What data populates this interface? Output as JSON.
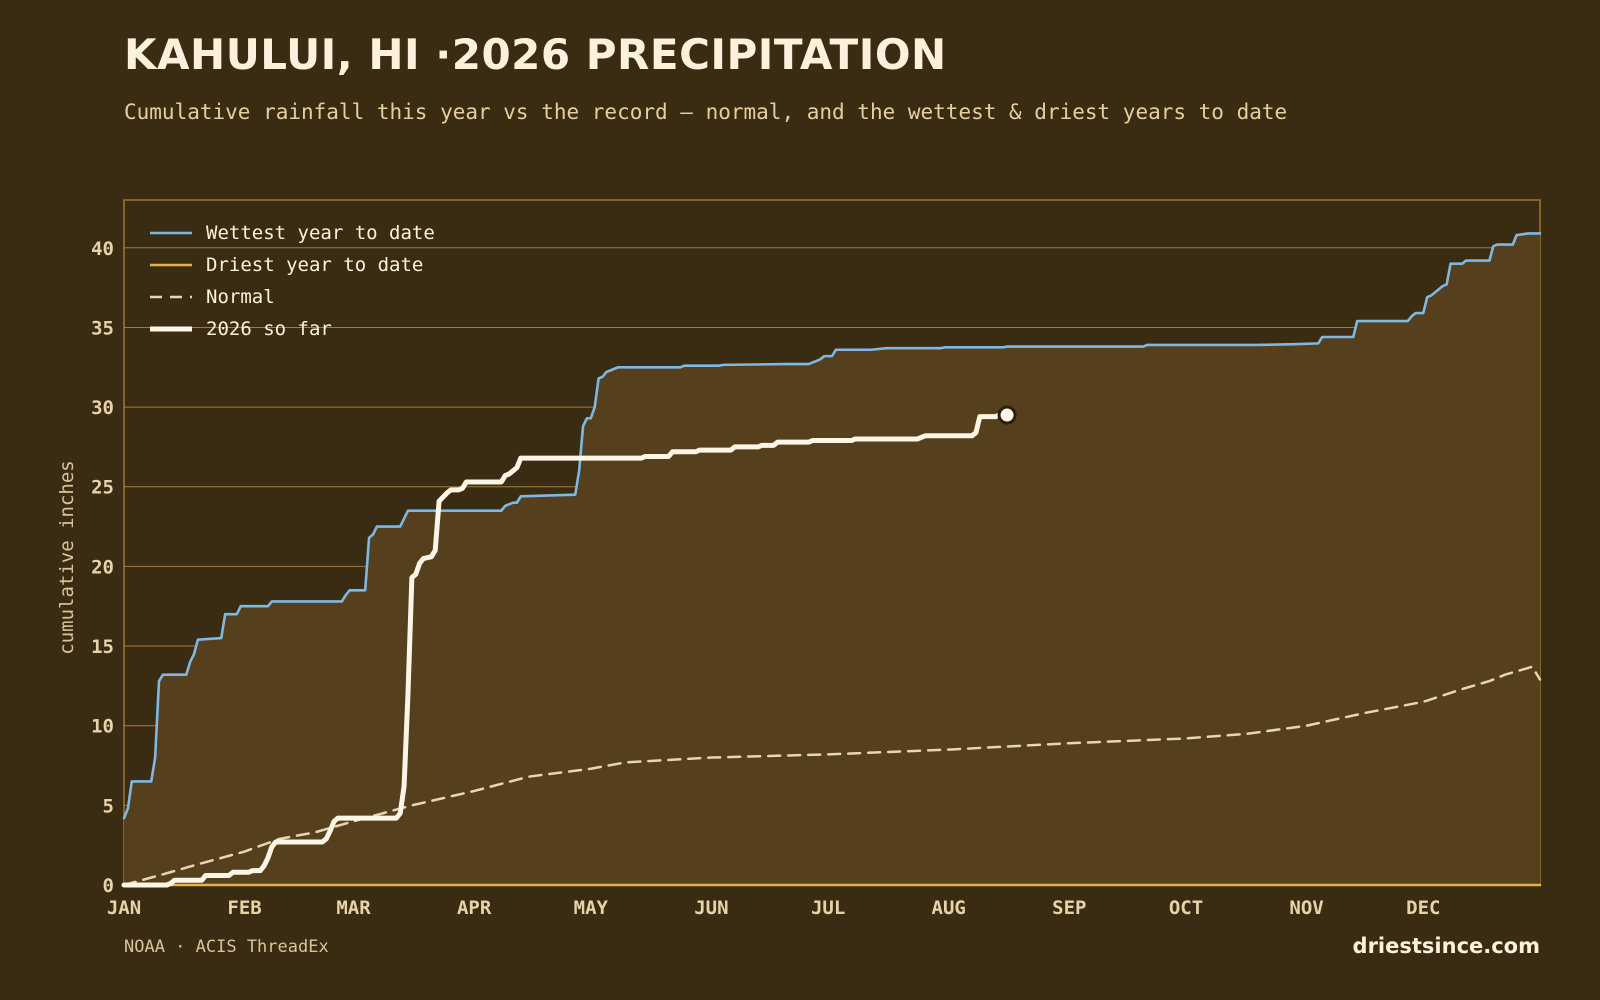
{
  "header": {
    "title": "KAHULUI, HI ·2026 PRECIPITATION",
    "subtitle": "Cumulative rainfall this year vs the record — normal, and the wettest & driest years to date"
  },
  "footer": {
    "source": "NOAA · ACIS ThreadEx",
    "brand": "driestsince.com"
  },
  "colors": {
    "background": "#3a2c13",
    "plot_fill": "#553f1d",
    "grid": "#b8893a",
    "wettest": "#7fb8e0",
    "driest": "#e3b24a",
    "normal": "#e8d6b0",
    "current": "#fdf6e6"
  },
  "chart_data": {
    "type": "line",
    "title": "KAHULUI, HI ·2026 PRECIPITATION",
    "subtitle": "Cumulative rainfall this year vs the record — normal, and the wettest & driest years to date",
    "xlabel": "",
    "ylabel": "cumulative inches",
    "x_unit": "day of year",
    "xlim": [
      1,
      365
    ],
    "ylim": [
      0,
      43
    ],
    "x_ticks": [
      {
        "label": "JAN",
        "day": 1
      },
      {
        "label": "FEB",
        "day": 32
      },
      {
        "label": "MAR",
        "day": 60
      },
      {
        "label": "APR",
        "day": 91
      },
      {
        "label": "MAY",
        "day": 121
      },
      {
        "label": "JUN",
        "day": 152
      },
      {
        "label": "JUL",
        "day": 182
      },
      {
        "label": "AUG",
        "day": 213
      },
      {
        "label": "SEP",
        "day": 244
      },
      {
        "label": "OCT",
        "day": 274
      },
      {
        "label": "NOV",
        "day": 305
      },
      {
        "label": "DEC",
        "day": 335
      }
    ],
    "y_ticks": [
      0,
      5,
      10,
      15,
      20,
      25,
      30,
      35,
      40
    ],
    "grid": true,
    "legend_position": "top-left",
    "series": [
      {
        "name": "Wettest year to date",
        "style": "solid",
        "color": "#7fb8e0",
        "points": [
          [
            1,
            4.2
          ],
          [
            2,
            4.8
          ],
          [
            3,
            6.5
          ],
          [
            8,
            6.5
          ],
          [
            9,
            8
          ],
          [
            10,
            12.8
          ],
          [
            11,
            13.2
          ],
          [
            17,
            13.2
          ],
          [
            18,
            14
          ],
          [
            19,
            14.5
          ],
          [
            20,
            15.4
          ],
          [
            26,
            15.5
          ],
          [
            27,
            17
          ],
          [
            30,
            17
          ],
          [
            31,
            17.5
          ],
          [
            38,
            17.5
          ],
          [
            39,
            17.8
          ],
          [
            57,
            17.8
          ],
          [
            58,
            18.2
          ],
          [
            59,
            18.5
          ],
          [
            63,
            18.5
          ],
          [
            64,
            21.8
          ],
          [
            65,
            22
          ],
          [
            66,
            22.5
          ],
          [
            72,
            22.5
          ],
          [
            73,
            23
          ],
          [
            74,
            23.5
          ],
          [
            98,
            23.5
          ],
          [
            99,
            23.8
          ],
          [
            101,
            24
          ],
          [
            102,
            24
          ],
          [
            103,
            24.4
          ],
          [
            117,
            24.5
          ],
          [
            118,
            26
          ],
          [
            119,
            28.8
          ],
          [
            120,
            29.3
          ],
          [
            121,
            29.3
          ],
          [
            122,
            30
          ],
          [
            123,
            31.8
          ],
          [
            124,
            31.9
          ],
          [
            125,
            32.2
          ],
          [
            127,
            32.4
          ],
          [
            128,
            32.5
          ],
          [
            144,
            32.5
          ],
          [
            145,
            32.6
          ],
          [
            154,
            32.6
          ],
          [
            155,
            32.65
          ],
          [
            171,
            32.7
          ],
          [
            177,
            32.7
          ],
          [
            179,
            32.9
          ],
          [
            180,
            33
          ],
          [
            181,
            33.2
          ],
          [
            183,
            33.2
          ],
          [
            184,
            33.6
          ],
          [
            193,
            33.6
          ],
          [
            197,
            33.7
          ],
          [
            211,
            33.7
          ],
          [
            212,
            33.75
          ],
          [
            227,
            33.75
          ],
          [
            228,
            33.8
          ],
          [
            248,
            33.8
          ],
          [
            263,
            33.8
          ],
          [
            264,
            33.9
          ],
          [
            285,
            33.9
          ],
          [
            292,
            33.9
          ],
          [
            302,
            33.95
          ],
          [
            308,
            34.0
          ],
          [
            309,
            34.4
          ],
          [
            317,
            34.4
          ],
          [
            318,
            35.4
          ],
          [
            331,
            35.4
          ],
          [
            332,
            35.7
          ],
          [
            333,
            35.9
          ],
          [
            335,
            35.9
          ],
          [
            336,
            36.9
          ],
          [
            337,
            37
          ],
          [
            340,
            37.6
          ],
          [
            341,
            37.7
          ],
          [
            342,
            39
          ],
          [
            345,
            39
          ],
          [
            346,
            39.2
          ],
          [
            352,
            39.2
          ],
          [
            353,
            40.1
          ],
          [
            354,
            40.2
          ],
          [
            358,
            40.2
          ],
          [
            359,
            40.8
          ],
          [
            362,
            40.9
          ],
          [
            365,
            40.9
          ]
        ]
      },
      {
        "name": "Driest year to date",
        "style": "solid",
        "color": "#e3b24a",
        "points": [
          [
            1,
            0
          ],
          [
            365,
            0
          ]
        ]
      },
      {
        "name": "Normal",
        "style": "dashed",
        "color": "#e8d6b0",
        "points": [
          [
            1,
            0
          ],
          [
            10,
            0.6
          ],
          [
            20,
            1.3
          ],
          [
            32,
            2.1
          ],
          [
            41,
            2.9
          ],
          [
            50,
            3.3
          ],
          [
            60,
            4.0
          ],
          [
            75,
            5.0
          ],
          [
            91,
            5.9
          ],
          [
            105,
            6.8
          ],
          [
            121,
            7.3
          ],
          [
            130,
            7.7
          ],
          [
            152,
            8.0
          ],
          [
            182,
            8.2
          ],
          [
            213,
            8.5
          ],
          [
            244,
            8.9
          ],
          [
            274,
            9.2
          ],
          [
            290,
            9.5
          ],
          [
            305,
            10.0
          ],
          [
            320,
            10.8
          ],
          [
            335,
            11.5
          ],
          [
            345,
            12.3
          ],
          [
            352,
            12.8
          ],
          [
            356,
            13.2
          ],
          [
            363,
            13.7
          ],
          [
            365,
            12.9
          ]
        ]
      },
      {
        "name": "2026 so far",
        "style": "solid-thick",
        "color": "#fdf6e6",
        "points": [
          [
            1,
            0
          ],
          [
            12,
            0
          ],
          [
            13,
            0.1
          ],
          [
            14,
            0.3
          ],
          [
            21,
            0.3
          ],
          [
            22,
            0.6
          ],
          [
            28,
            0.6
          ],
          [
            29,
            0.8
          ],
          [
            33,
            0.8
          ],
          [
            34,
            0.9
          ],
          [
            36,
            0.9
          ],
          [
            37,
            1.2
          ],
          [
            38,
            1.7
          ],
          [
            39,
            2.4
          ],
          [
            40,
            2.7
          ],
          [
            52,
            2.7
          ],
          [
            53,
            2.9
          ],
          [
            54,
            3.4
          ],
          [
            55,
            4.0
          ],
          [
            56,
            4.2
          ],
          [
            71,
            4.2
          ],
          [
            72,
            4.5
          ],
          [
            73,
            6.2
          ],
          [
            74,
            12
          ],
          [
            75,
            19.3
          ],
          [
            76,
            19.5
          ],
          [
            77,
            20.2
          ],
          [
            78,
            20.5
          ],
          [
            80,
            20.6
          ],
          [
            81,
            21
          ],
          [
            82,
            24.1
          ],
          [
            84,
            24.6
          ],
          [
            85,
            24.8
          ],
          [
            87,
            24.8
          ],
          [
            88,
            24.9
          ],
          [
            89,
            25.3
          ],
          [
            98,
            25.3
          ],
          [
            99,
            25.7
          ],
          [
            100,
            25.8
          ],
          [
            101,
            26
          ],
          [
            102,
            26.2
          ],
          [
            103,
            26.8
          ],
          [
            134,
            26.8
          ],
          [
            135,
            26.9
          ],
          [
            141,
            26.9
          ],
          [
            142,
            27.2
          ],
          [
            148,
            27.2
          ],
          [
            149,
            27.3
          ],
          [
            157,
            27.3
          ],
          [
            158,
            27.5
          ],
          [
            164,
            27.5
          ],
          [
            165,
            27.6
          ],
          [
            168,
            27.6
          ],
          [
            169,
            27.8
          ],
          [
            177,
            27.8
          ],
          [
            178,
            27.9
          ],
          [
            188,
            27.9
          ],
          [
            189,
            28
          ],
          [
            205,
            28
          ],
          [
            206,
            28.1
          ],
          [
            207,
            28.2
          ],
          [
            219,
            28.2
          ],
          [
            220,
            28.4
          ],
          [
            221,
            29.4
          ],
          [
            225,
            29.4
          ],
          [
            226,
            29.5
          ],
          [
            228,
            29.5
          ]
        ]
      }
    ],
    "current_marker": {
      "day": 228,
      "value": 29.5
    }
  }
}
